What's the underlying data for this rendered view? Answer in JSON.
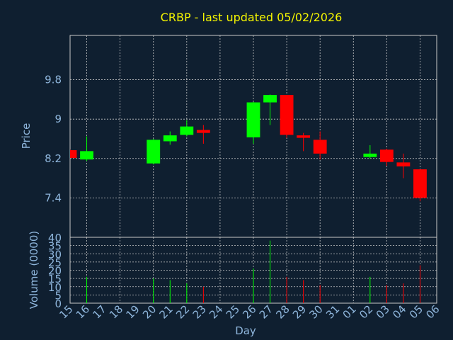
{
  "chart_data": {
    "type": "candlestick",
    "title": "CRBP - last updated 05/02/2026",
    "xlabel": "Day",
    "price_panel": {
      "ylabel": "Price",
      "yticks": [
        7.4,
        8.2,
        9,
        9.8
      ],
      "ylim": [
        6.6,
        10.7
      ]
    },
    "volume_panel": {
      "ylabel": "Volume (0000)",
      "yticks": [
        0,
        5,
        10,
        15,
        20,
        25,
        30,
        35,
        40
      ],
      "ylim": [
        0,
        40
      ]
    },
    "x_tick_labels": [
      "15",
      "16",
      "17",
      "18",
      "19",
      "20",
      "21",
      "22",
      "23",
      "24",
      "25",
      "26",
      "27",
      "28",
      "29",
      "30",
      "31",
      "01",
      "02",
      "03",
      "04",
      "05",
      "06"
    ],
    "grid": true,
    "colors": {
      "up": "#00ff00",
      "down": "#ff0000",
      "background": "#0f1f30",
      "title": "#f5f500",
      "text": "#8fb6dc",
      "grid": "#c8c8c8"
    },
    "candles": [
      {
        "day": "15",
        "open": 8.37,
        "high": 8.38,
        "low": 8.21,
        "close": 8.21,
        "volume": 0
      },
      {
        "day": "16",
        "open": 8.18,
        "high": 8.65,
        "low": 8.15,
        "close": 8.35,
        "volume": 16
      },
      {
        "day": "20",
        "open": 8.1,
        "high": 8.6,
        "low": 8.08,
        "close": 8.58,
        "volume": 15
      },
      {
        "day": "21",
        "open": 8.55,
        "high": 8.75,
        "low": 8.48,
        "close": 8.67,
        "volume": 14
      },
      {
        "day": "22",
        "open": 8.68,
        "high": 8.98,
        "low": 8.65,
        "close": 8.85,
        "volume": 12
      },
      {
        "day": "23",
        "open": 8.78,
        "high": 8.88,
        "low": 8.5,
        "close": 8.72,
        "volume": 10
      },
      {
        "day": "26",
        "open": 8.63,
        "high": 9.35,
        "low": 8.5,
        "close": 9.34,
        "volume": 21
      },
      {
        "day": "27",
        "open": 9.34,
        "high": 9.5,
        "low": 8.88,
        "close": 9.49,
        "volume": 38
      },
      {
        "day": "28",
        "open": 9.49,
        "high": 9.49,
        "low": 8.62,
        "close": 8.68,
        "volume": 16
      },
      {
        "day": "29",
        "open": 8.67,
        "high": 8.72,
        "low": 8.35,
        "close": 8.62,
        "volume": 14
      },
      {
        "day": "30",
        "open": 8.58,
        "high": 8.75,
        "low": 8.18,
        "close": 8.3,
        "volume": 11
      },
      {
        "day": "02",
        "open": 8.23,
        "high": 8.47,
        "low": 8.2,
        "close": 8.3,
        "volume": 16
      },
      {
        "day": "03",
        "open": 8.38,
        "high": 8.4,
        "low": 8.05,
        "close": 8.13,
        "volume": 11
      },
      {
        "day": "04",
        "open": 8.12,
        "high": 8.3,
        "low": 7.8,
        "close": 8.04,
        "volume": 12
      },
      {
        "day": "05",
        "open": 7.98,
        "high": 7.98,
        "low": 7.33,
        "close": 7.4,
        "volume": 23
      }
    ]
  }
}
